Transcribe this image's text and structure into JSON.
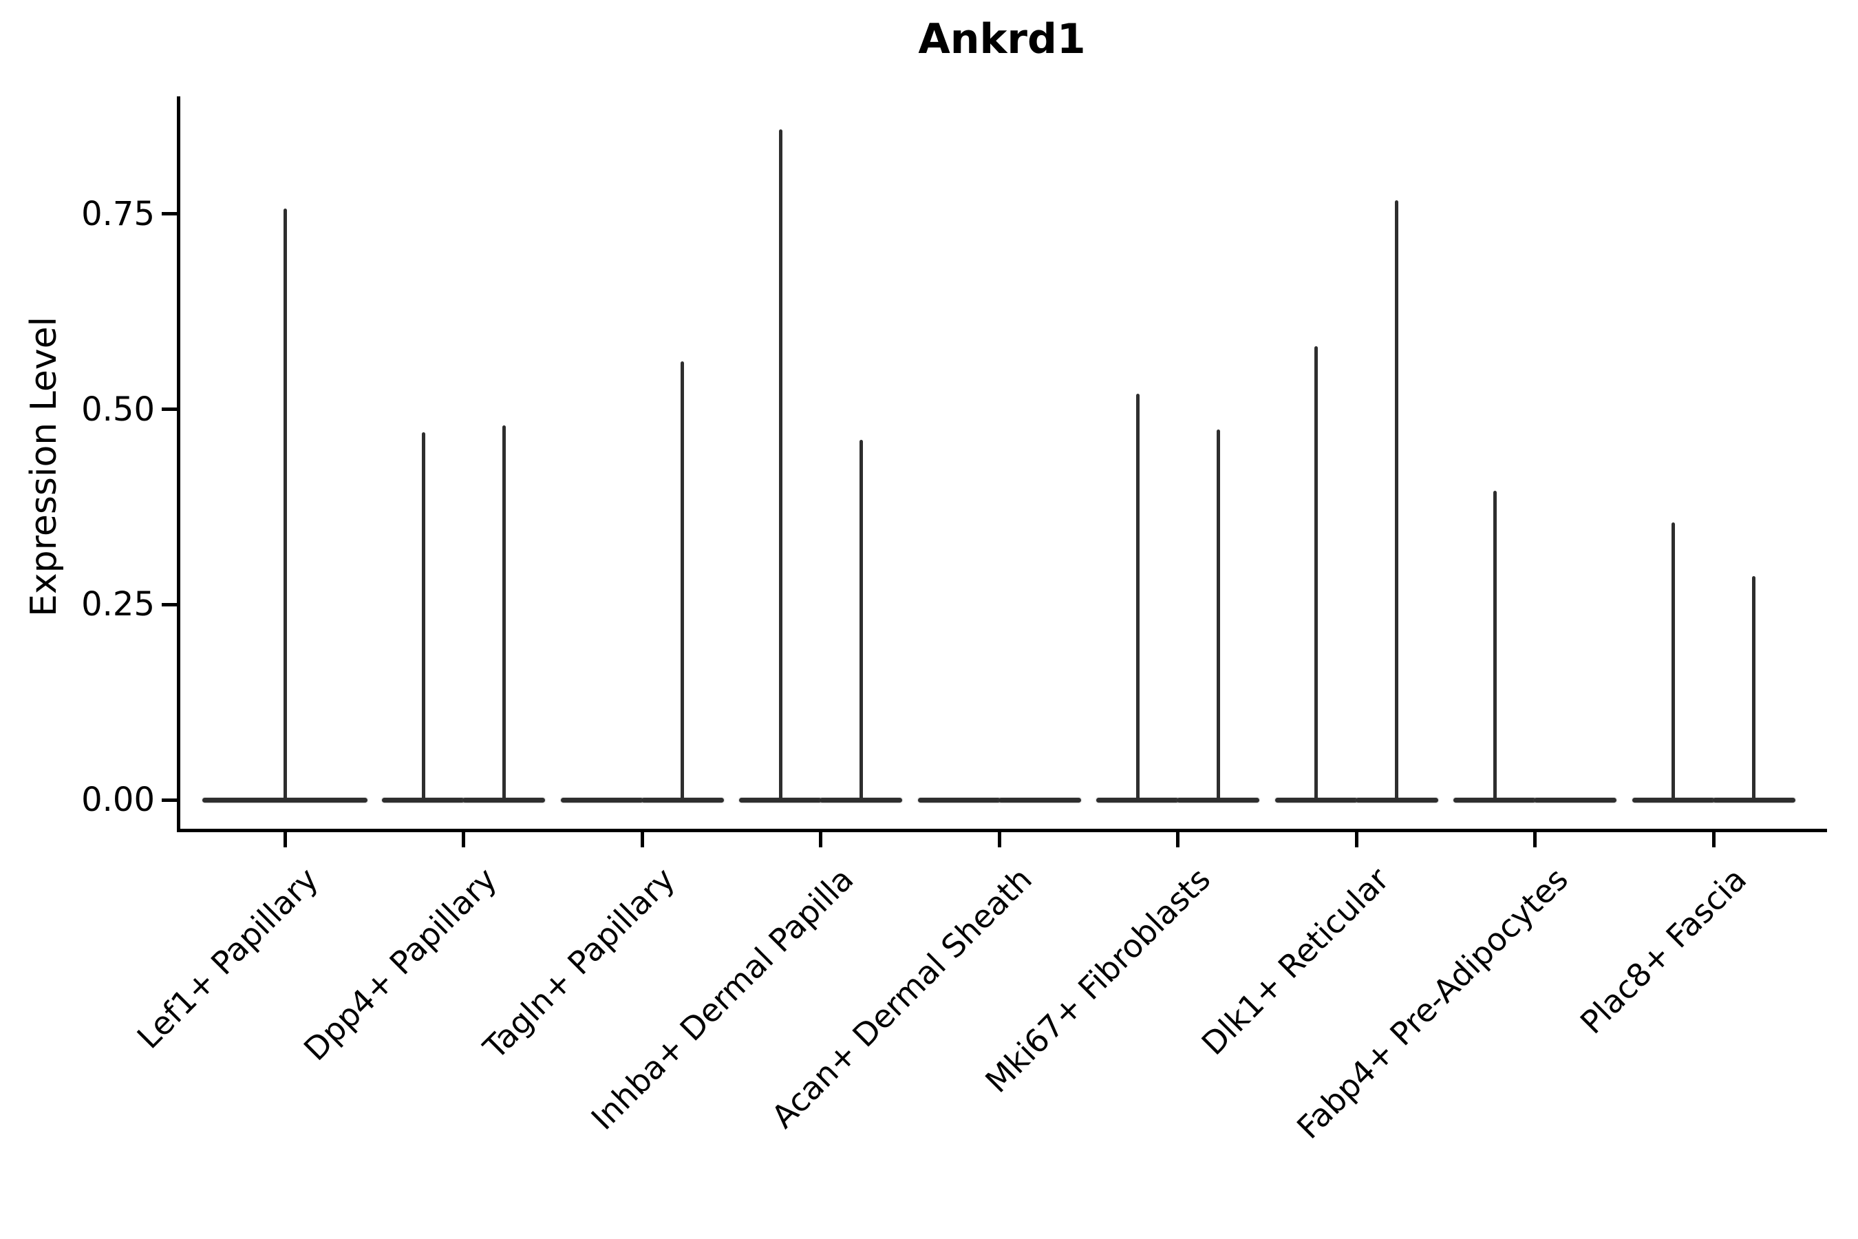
{
  "chart_data": {
    "type": "violin",
    "title": "Ankrd1",
    "ylabel": "Expression Level",
    "xlabel": "",
    "ylim": [
      0,
      0.9
    ],
    "grid": false,
    "legend": "none",
    "violin_color": "#2e2e2e",
    "axis_color": "#000000",
    "yticks": [
      0.0,
      0.25,
      0.5,
      0.75
    ],
    "ytick_labels": [
      "0.00",
      "0.25",
      "0.50",
      "0.75"
    ],
    "categories": [
      "Lef1+ Papillary",
      "Dpp4+ Papillary",
      "Tagln+ Papillary",
      "Inhba+ Dermal Papilla",
      "Acan+ Dermal Sheath",
      "Mki67+ Fibroblasts",
      "Dlk1+ Reticular",
      "Fabp4+ Pre-Adipocytes",
      "Plac8+ Fascia"
    ],
    "violins": [
      {
        "category": "Lef1+ Papillary",
        "max_expression": [
          0.757
        ]
      },
      {
        "category": "Dpp4+ Papillary",
        "max_expression": [
          0.471,
          0.479
        ]
      },
      {
        "category": "Tagln+ Papillary",
        "max_expression": [
          0.0,
          0.561
        ]
      },
      {
        "category": "Inhba+ Dermal Papilla",
        "max_expression": [
          0.858,
          0.461
        ]
      },
      {
        "category": "Acan+ Dermal Sheath",
        "max_expression": [
          0.0,
          0.0
        ]
      },
      {
        "category": "Mki67+ Fibroblasts",
        "max_expression": [
          0.52,
          0.474
        ]
      },
      {
        "category": "Dlk1+ Reticular",
        "max_expression": [
          0.581,
          0.768
        ]
      },
      {
        "category": "Fabp4+ Pre-Adipocytes",
        "max_expression": [
          0.396,
          0.0
        ]
      },
      {
        "category": "Plac8+ Fascia",
        "max_expression": [
          0.355,
          0.286
        ]
      }
    ],
    "description": "Violin plot; each category shows flat density bar at 0 with thin spike up to max expression"
  }
}
